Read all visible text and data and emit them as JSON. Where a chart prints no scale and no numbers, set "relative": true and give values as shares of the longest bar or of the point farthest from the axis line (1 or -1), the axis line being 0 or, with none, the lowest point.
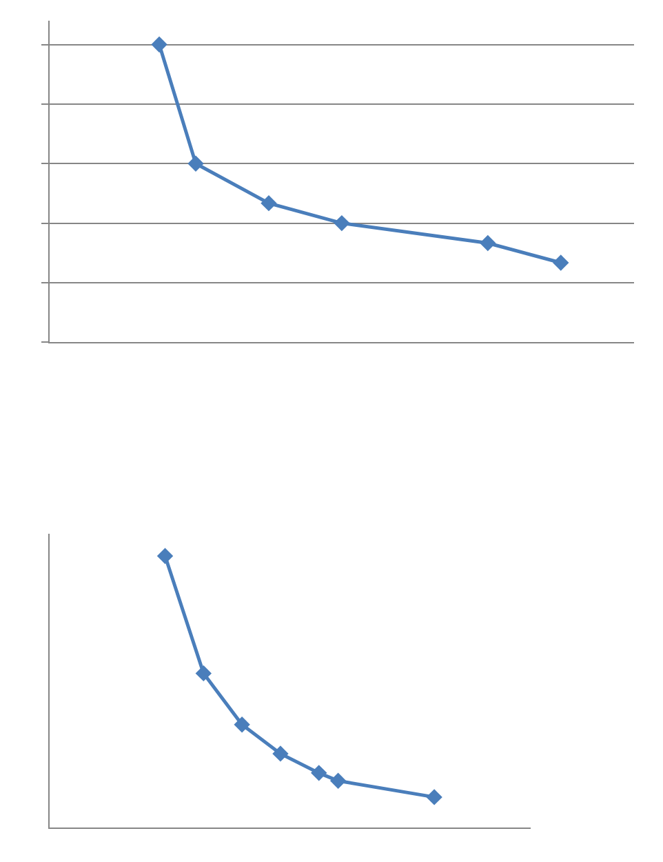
{
  "chart_data": [
    {
      "type": "line",
      "relative": true,
      "categories": [
        null,
        null,
        null,
        null,
        null,
        null,
        null,
        null,
        null,
        null,
        null,
        null,
        null,
        null,
        null,
        null,
        null
      ],
      "series": [
        {
          "color": "#4a7ebb",
          "values": [
            null,
            null,
            null,
            1,
            0.6,
            null,
            0.467,
            null,
            0.4,
            null,
            null,
            null,
            0.333,
            null,
            0.267,
            null,
            null
          ]
        }
      ],
      "grid": "y",
      "marker": "diamond",
      "line_style": "solid"
    },
    {
      "type": "line",
      "relative": true,
      "categories": [
        null,
        null,
        null,
        null,
        null,
        null,
        null,
        null,
        null,
        null,
        null,
        null,
        null,
        null,
        null,
        null,
        null,
        null,
        null,
        null,
        null,
        null,
        null,
        null,
        null,
        null
      ],
      "series": [
        {
          "color": "#4a7ebb",
          "values": [
            null,
            null,
            null,
            null,
            null,
            null,
            1,
            null,
            0.568,
            null,
            0.379,
            null,
            0.272,
            null,
            0.201,
            0.172,
            null,
            null,
            null,
            null,
            0.112,
            null,
            null,
            null,
            null,
            null
          ]
        }
      ],
      "grid": false,
      "marker": "diamond",
      "line_style": "solid"
    }
  ]
}
